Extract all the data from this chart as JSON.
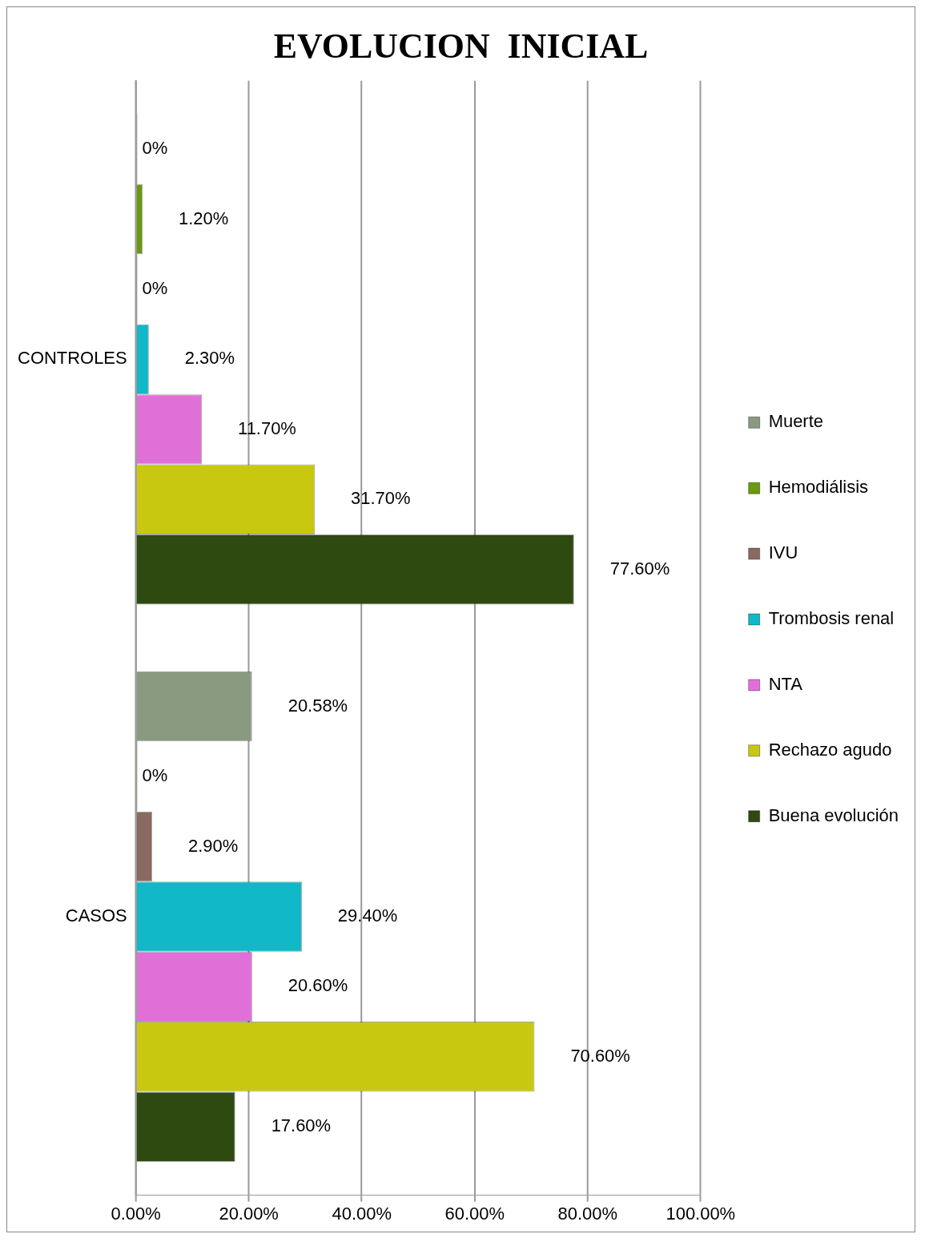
{
  "chart_data": {
    "type": "bar",
    "orientation": "horizontal",
    "title": "EVOLUCION  INICIAL",
    "categories": [
      "CONTROLES",
      "CASOS"
    ],
    "series": [
      {
        "name": "Muerte",
        "color": "#8a9a80",
        "values": [
          0,
          20.58
        ],
        "value_labels": [
          "0%",
          "20.58%"
        ]
      },
      {
        "name": "Hemodiálisis",
        "color": "#6a9a10",
        "values": [
          1.2,
          0
        ],
        "value_labels": [
          "1.20%",
          "0%"
        ]
      },
      {
        "name": "IVU",
        "color": "#8a6a60",
        "values": [
          0,
          2.9
        ],
        "value_labels": [
          "0%",
          "2.90%"
        ]
      },
      {
        "name": "Trombosis renal",
        "color": "#10b8c8",
        "values": [
          2.3,
          29.4
        ],
        "value_labels": [
          "2.30%",
          "29.40%"
        ]
      },
      {
        "name": "NTA",
        "color": "#e070d8",
        "values": [
          11.7,
          20.6
        ],
        "value_labels": [
          "11.70%",
          "20.60%"
        ]
      },
      {
        "name": "Rechazo agudo",
        "color": "#c8c810",
        "values": [
          31.7,
          70.6
        ],
        "value_labels": [
          "31.70%",
          "70.60%"
        ]
      },
      {
        "name": "Buena evolución",
        "color": "#2e4a10",
        "values": [
          77.6,
          17.6
        ],
        "value_labels": [
          "77.60%",
          "17.60%"
        ]
      }
    ],
    "xlim": [
      0,
      100
    ],
    "xticks": [
      {
        "value": 0,
        "label": "0.00%"
      },
      {
        "value": 20,
        "label": "20.00%"
      },
      {
        "value": 40,
        "label": "40.00%"
      },
      {
        "value": 60,
        "label": "60.00%"
      },
      {
        "value": 80,
        "label": "80.00%"
      },
      {
        "value": 100,
        "label": "100.00%"
      }
    ],
    "grid": "x",
    "legend": "right"
  }
}
